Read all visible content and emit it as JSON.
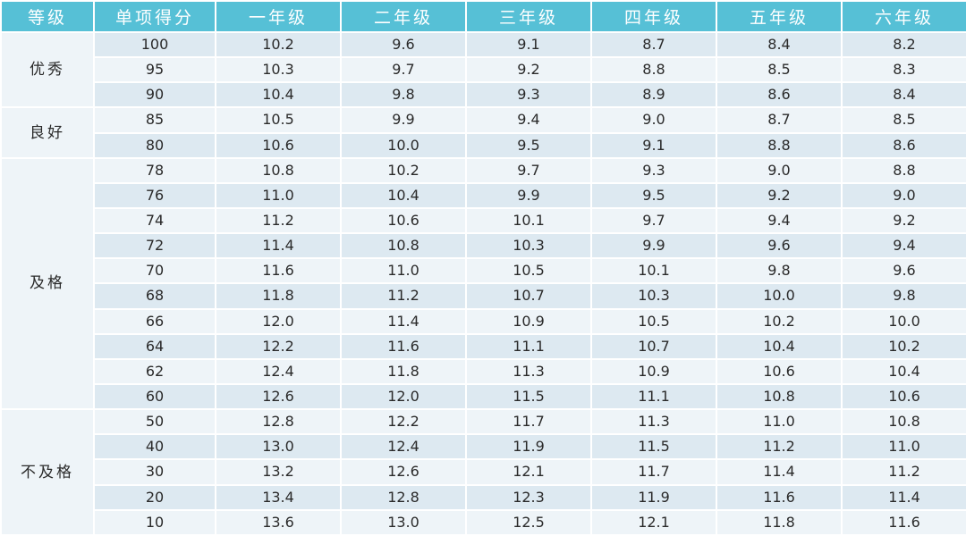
{
  "table": {
    "headers": [
      "等级",
      "单项得分",
      "一年级",
      "二年级",
      "三年级",
      "四年级",
      "五年级",
      "六年级"
    ],
    "groups": [
      {
        "level": "优秀",
        "rows": [
          [
            "100",
            "10.2",
            "9.6",
            "9.1",
            "8.7",
            "8.4",
            "8.2"
          ],
          [
            "95",
            "10.3",
            "9.7",
            "9.2",
            "8.8",
            "8.5",
            "8.3"
          ],
          [
            "90",
            "10.4",
            "9.8",
            "9.3",
            "8.9",
            "8.6",
            "8.4"
          ]
        ]
      },
      {
        "level": "良好",
        "rows": [
          [
            "85",
            "10.5",
            "9.9",
            "9.4",
            "9.0",
            "8.7",
            "8.5"
          ],
          [
            "80",
            "10.6",
            "10.0",
            "9.5",
            "9.1",
            "8.8",
            "8.6"
          ]
        ]
      },
      {
        "level": "及格",
        "rows": [
          [
            "78",
            "10.8",
            "10.2",
            "9.7",
            "9.3",
            "9.0",
            "8.8"
          ],
          [
            "76",
            "11.0",
            "10.4",
            "9.9",
            "9.5",
            "9.2",
            "9.0"
          ],
          [
            "74",
            "11.2",
            "10.6",
            "10.1",
            "9.7",
            "9.4",
            "9.2"
          ],
          [
            "72",
            "11.4",
            "10.8",
            "10.3",
            "9.9",
            "9.6",
            "9.4"
          ],
          [
            "70",
            "11.6",
            "11.0",
            "10.5",
            "10.1",
            "9.8",
            "9.6"
          ],
          [
            "68",
            "11.8",
            "11.2",
            "10.7",
            "10.3",
            "10.0",
            "9.8"
          ],
          [
            "66",
            "12.0",
            "11.4",
            "10.9",
            "10.5",
            "10.2",
            "10.0"
          ],
          [
            "64",
            "12.2",
            "11.6",
            "11.1",
            "10.7",
            "10.4",
            "10.2"
          ],
          [
            "62",
            "12.4",
            "11.8",
            "11.3",
            "10.9",
            "10.6",
            "10.4"
          ],
          [
            "60",
            "12.6",
            "12.0",
            "11.5",
            "11.1",
            "10.8",
            "10.6"
          ]
        ]
      },
      {
        "level": "不及格",
        "rows": [
          [
            "50",
            "12.8",
            "12.2",
            "11.7",
            "11.3",
            "11.0",
            "10.8"
          ],
          [
            "40",
            "13.0",
            "12.4",
            "11.9",
            "11.5",
            "11.2",
            "11.0"
          ],
          [
            "30",
            "13.2",
            "12.6",
            "12.1",
            "11.7",
            "11.4",
            "11.2"
          ],
          [
            "20",
            "13.4",
            "12.8",
            "12.3",
            "11.9",
            "11.6",
            "11.4"
          ],
          [
            "10",
            "13.6",
            "13.0",
            "12.5",
            "12.1",
            "11.8",
            "11.6"
          ]
        ]
      }
    ]
  },
  "colors": {
    "header_bg": "#56c0d6",
    "header_text": "#ffffff",
    "row_dark": "#dde9f1",
    "row_light": "#eef4f8"
  }
}
